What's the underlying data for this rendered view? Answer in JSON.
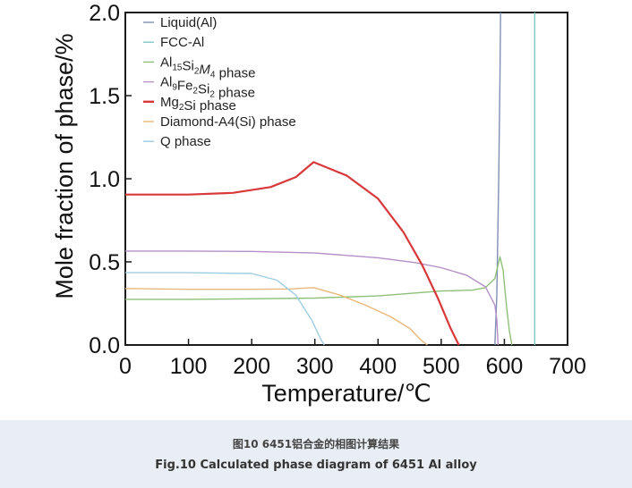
{
  "chart_data": {
    "type": "line",
    "title": "",
    "xlabel": "Temperature/℃",
    "ylabel": "Mole fraction of phase/%",
    "xlim": [
      0,
      700
    ],
    "ylim": [
      0,
      2.0
    ],
    "xticks": [
      "0",
      "100",
      "200",
      "300",
      "400",
      "500",
      "600",
      "700"
    ],
    "yticks": [
      "0.0",
      "0.5",
      "1.0",
      "1.5",
      "2.0"
    ],
    "grid": false,
    "legend_position": "top-left",
    "series": [
      {
        "name": "Liquid(Al)",
        "color": "#7f8fb5",
        "points": [
          [
            585,
            0
          ],
          [
            588,
            0.3
          ],
          [
            591,
            1.0
          ],
          [
            593,
            1.6
          ],
          [
            594,
            2.0
          ]
        ]
      },
      {
        "name": "FCC-Al",
        "color": "#7fc7c3",
        "points": [
          [
            648,
            0
          ],
          [
            648,
            2.0
          ]
        ]
      },
      {
        "name_parts": [
          {
            "t": "Al"
          },
          {
            "t": "15",
            "sub": true
          },
          {
            "t": "Si"
          },
          {
            "t": "2",
            "sub": true
          },
          {
            "t": "M",
            "italic": true
          },
          {
            "t": "4",
            "sub": true
          },
          {
            "t": " phase"
          }
        ],
        "name": "Al15Si2M4 phase",
        "color": "#8ec07a",
        "points": [
          [
            0,
            0.275
          ],
          [
            100,
            0.275
          ],
          [
            200,
            0.278
          ],
          [
            300,
            0.282
          ],
          [
            400,
            0.295
          ],
          [
            450,
            0.31
          ],
          [
            500,
            0.325
          ],
          [
            550,
            0.33
          ],
          [
            570,
            0.345
          ],
          [
            585,
            0.4
          ],
          [
            593,
            0.53
          ],
          [
            598,
            0.45
          ],
          [
            603,
            0.25
          ],
          [
            608,
            0.08
          ],
          [
            612,
            0
          ]
        ]
      },
      {
        "name_parts": [
          {
            "t": "Al"
          },
          {
            "t": "9",
            "sub": true
          },
          {
            "t": "Fe"
          },
          {
            "t": "2",
            "sub": true
          },
          {
            "t": "Si"
          },
          {
            "t": "2",
            "sub": true
          },
          {
            "t": " phase"
          }
        ],
        "name": "Al9Fe2Si2 phase",
        "color": "#b48fc8",
        "points": [
          [
            0,
            0.565
          ],
          [
            100,
            0.565
          ],
          [
            200,
            0.563
          ],
          [
            300,
            0.553
          ],
          [
            400,
            0.525
          ],
          [
            460,
            0.495
          ],
          [
            500,
            0.465
          ],
          [
            540,
            0.42
          ],
          [
            570,
            0.35
          ],
          [
            585,
            0.24
          ],
          [
            588,
            0.15
          ],
          [
            590,
            0
          ]
        ]
      },
      {
        "name_parts": [
          {
            "t": "Mg"
          },
          {
            "t": "2",
            "sub": true
          },
          {
            "t": "Si phase"
          }
        ],
        "name": "Mg2Si phase",
        "color": "#d9383a",
        "points": [
          [
            0,
            0.905
          ],
          [
            100,
            0.905
          ],
          [
            170,
            0.915
          ],
          [
            230,
            0.95
          ],
          [
            270,
            1.01
          ],
          [
            298,
            1.1
          ],
          [
            350,
            1.02
          ],
          [
            400,
            0.88
          ],
          [
            440,
            0.68
          ],
          [
            470,
            0.48
          ],
          [
            495,
            0.28
          ],
          [
            515,
            0.1
          ],
          [
            528,
            0
          ]
        ]
      },
      {
        "name": "Diamond-A4(Si) phase",
        "color": "#e8b87a",
        "points": [
          [
            0,
            0.34
          ],
          [
            100,
            0.335
          ],
          [
            200,
            0.335
          ],
          [
            260,
            0.337
          ],
          [
            298,
            0.345
          ],
          [
            340,
            0.3
          ],
          [
            380,
            0.24
          ],
          [
            420,
            0.17
          ],
          [
            450,
            0.1
          ],
          [
            468,
            0.03
          ],
          [
            478,
            0
          ]
        ]
      },
      {
        "name": "Q phase",
        "color": "#9fcde0",
        "points": [
          [
            0,
            0.435
          ],
          [
            100,
            0.435
          ],
          [
            200,
            0.43
          ],
          [
            240,
            0.39
          ],
          [
            270,
            0.3
          ],
          [
            295,
            0.15
          ],
          [
            310,
            0.03
          ],
          [
            315,
            0
          ]
        ]
      }
    ]
  },
  "caption": {
    "cn": "图10 6451铝合金的相图计算结果",
    "en": "Fig.10 Calculated phase diagram of 6451 Al alloy"
  }
}
